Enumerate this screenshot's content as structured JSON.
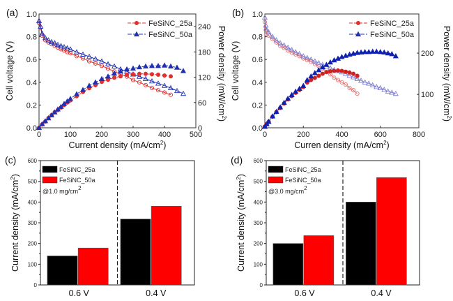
{
  "chart_data": [
    {
      "id": "a",
      "panel_label": "(a)",
      "type": "line",
      "xlabel": "Current density (mA/cm",
      "xlabel_sup": "2",
      "xlabel_end": ")",
      "ylabel": "Cell voltage (V)",
      "y2label": "Power density (mW/cm",
      "y2label_sup": "2",
      "y2label_end": ")",
      "xlim": [
        0,
        500
      ],
      "ylim": [
        0,
        1.0
      ],
      "y2lim": [
        0,
        270
      ],
      "xticks": [
        "0",
        "100",
        "200",
        "300",
        "400",
        "500"
      ],
      "yticks": [
        "0.0",
        "0.2",
        "0.4",
        "0.6",
        "0.8",
        "1.0"
      ],
      "y2ticks": [
        "0",
        "60",
        "120",
        "180",
        "240"
      ],
      "legend": [
        "FeSiNC_25a",
        "FeSiNC_50a"
      ],
      "legend_position": "top-right",
      "series": [
        {
          "name": "FeSiNC_25a",
          "kind": "voltage",
          "color": "#e03030",
          "x": [
            0,
            5,
            10,
            20,
            30,
            40,
            50,
            60,
            70,
            80,
            90,
            100,
            120,
            140,
            160,
            180,
            200,
            220,
            240,
            260,
            280,
            300,
            320,
            340,
            360,
            380,
            400,
            420
          ],
          "y": [
            0.92,
            0.88,
            0.81,
            0.77,
            0.75,
            0.735,
            0.72,
            0.705,
            0.69,
            0.68,
            0.665,
            0.655,
            0.63,
            0.61,
            0.585,
            0.565,
            0.545,
            0.52,
            0.495,
            0.47,
            0.45,
            0.42,
            0.4,
            0.375,
            0.35,
            0.33,
            0.31,
            0.29
          ]
        },
        {
          "name": "FeSiNC_50a",
          "kind": "voltage",
          "color": "#2030b0",
          "x": [
            0,
            5,
            10,
            20,
            30,
            40,
            50,
            60,
            70,
            80,
            90,
            100,
            120,
            140,
            160,
            180,
            200,
            220,
            240,
            260,
            280,
            300,
            320,
            340,
            360,
            380,
            400,
            420,
            440,
            460
          ],
          "y": [
            0.94,
            0.89,
            0.83,
            0.79,
            0.77,
            0.755,
            0.745,
            0.73,
            0.72,
            0.71,
            0.7,
            0.69,
            0.665,
            0.645,
            0.625,
            0.605,
            0.585,
            0.56,
            0.54,
            0.515,
            0.495,
            0.47,
            0.45,
            0.43,
            0.41,
            0.39,
            0.37,
            0.35,
            0.325,
            0.3
          ]
        },
        {
          "name": "FeSiNC_25a",
          "kind": "power",
          "color": "#e03030",
          "x": [
            0,
            10,
            20,
            30,
            40,
            50,
            60,
            70,
            80,
            90,
            100,
            120,
            140,
            160,
            180,
            200,
            220,
            240,
            260,
            280,
            300,
            320,
            340,
            360,
            380,
            400,
            420
          ],
          "y": [
            0,
            8,
            15,
            23,
            30,
            37,
            42,
            48,
            54,
            60,
            65,
            75,
            85,
            94,
            101,
            109,
            114,
            119,
            122,
            126,
            127,
            128,
            128,
            127,
            126,
            124,
            122
          ]
        },
        {
          "name": "FeSiNC_50a",
          "kind": "power",
          "color": "#2030b0",
          "x": [
            0,
            10,
            20,
            30,
            40,
            50,
            60,
            70,
            80,
            90,
            100,
            120,
            140,
            160,
            180,
            200,
            220,
            240,
            260,
            280,
            300,
            320,
            340,
            360,
            380,
            400,
            420,
            440,
            460
          ],
          "y": [
            0,
            9,
            16,
            23,
            30,
            37,
            44,
            50,
            57,
            63,
            69,
            80,
            90,
            100,
            108,
            116,
            122,
            129,
            134,
            139,
            141,
            144,
            146,
            147,
            147,
            148,
            146,
            143,
            135
          ]
        }
      ]
    },
    {
      "id": "b",
      "panel_label": "(b)",
      "type": "line",
      "xlabel": "Curren density (mA/cm",
      "xlabel_sup": "2",
      "xlabel_end": ")",
      "ylabel": "Cell voltage  (V)",
      "y2label": "Power density (mW/cm",
      "y2label_sup": "2",
      "y2label_end": ")",
      "xlim": [
        0,
        800
      ],
      "ylim": [
        0,
        1.0
      ],
      "y2lim": [
        19,
        295
      ],
      "xticks": [
        "0",
        "200",
        "400",
        "600",
        "800"
      ],
      "yticks": [
        "0.0",
        "0.2",
        "0.4",
        "0.6",
        "0.8",
        "1.0"
      ],
      "y2ticks": [
        "100",
        "200"
      ],
      "legend": [
        "FeSiNC_25a",
        "FeSiNC_50a"
      ],
      "legend_position": "top-right",
      "series": [
        {
          "name": "FeSiNC_25a",
          "kind": "voltage",
          "color": "#e87070",
          "x": [
            0,
            5,
            10,
            20,
            40,
            60,
            80,
            100,
            120,
            140,
            160,
            180,
            200,
            220,
            240,
            260,
            280,
            300,
            320,
            340,
            360,
            380,
            400,
            420,
            440,
            460,
            480
          ],
          "y": [
            0.93,
            0.86,
            0.82,
            0.81,
            0.78,
            0.75,
            0.72,
            0.7,
            0.68,
            0.66,
            0.645,
            0.63,
            0.61,
            0.595,
            0.58,
            0.56,
            0.54,
            0.52,
            0.49,
            0.47,
            0.44,
            0.42,
            0.4,
            0.38,
            0.35,
            0.33,
            0.3
          ]
        },
        {
          "name": "FeSiNC_50a",
          "kind": "voltage",
          "color": "#8080d0",
          "x": [
            0,
            5,
            10,
            20,
            40,
            60,
            80,
            100,
            120,
            140,
            160,
            180,
            200,
            220,
            240,
            260,
            280,
            300,
            320,
            340,
            360,
            380,
            400,
            420,
            440,
            460,
            480,
            500,
            520,
            540,
            560,
            580,
            600,
            620,
            640,
            660,
            680
          ],
          "y": [
            0.97,
            0.9,
            0.86,
            0.84,
            0.8,
            0.77,
            0.745,
            0.725,
            0.705,
            0.685,
            0.665,
            0.65,
            0.63,
            0.615,
            0.6,
            0.585,
            0.57,
            0.555,
            0.54,
            0.525,
            0.51,
            0.5,
            0.49,
            0.475,
            0.46,
            0.445,
            0.43,
            0.415,
            0.4,
            0.39,
            0.375,
            0.36,
            0.35,
            0.335,
            0.32,
            0.31,
            0.3
          ]
        },
        {
          "name": "FeSiNC_25a",
          "kind": "power",
          "color": "#d02020",
          "x": [
            0,
            10,
            20,
            40,
            60,
            80,
            100,
            120,
            140,
            160,
            180,
            200,
            220,
            240,
            260,
            280,
            300,
            320,
            340,
            360,
            380,
            400,
            420,
            440,
            460,
            480
          ],
          "y": [
            22,
            28,
            34,
            46,
            57,
            67,
            78,
            88,
            96,
            104,
            111,
            118,
            129,
            135,
            140,
            145,
            150,
            154,
            156,
            157,
            158,
            157,
            155,
            153,
            150,
            145
          ]
        },
        {
          "name": "FeSiNC_50a",
          "kind": "power",
          "color": "#1020b0",
          "x": [
            0,
            10,
            20,
            40,
            60,
            80,
            100,
            120,
            140,
            160,
            180,
            200,
            220,
            240,
            260,
            280,
            300,
            320,
            340,
            360,
            380,
            400,
            420,
            440,
            460,
            480,
            500,
            520,
            540,
            560,
            580,
            600,
            620,
            640,
            660,
            680
          ],
          "y": [
            22,
            28,
            34,
            47,
            58,
            69,
            80,
            90,
            99,
            107,
            114,
            121,
            135,
            144,
            152,
            159,
            166,
            172,
            178,
            183,
            187,
            191,
            194,
            197,
            199,
            201,
            202,
            203,
            203,
            204,
            204,
            203,
            202,
            200,
            198,
            193
          ]
        }
      ]
    },
    {
      "id": "c",
      "panel_label": "(c)",
      "type": "bar",
      "ylabel": "Current density (mA/cm",
      "ylabel_sup": "2",
      "ylabel_end": ")",
      "categories": [
        "0.6 V",
        "0.4 V"
      ],
      "ylim": [
        0,
        600
      ],
      "yticks": [
        "0",
        "100",
        "200",
        "300",
        "400",
        "500",
        "600"
      ],
      "annotation": "@1.0 mg/cm",
      "annotation_sup": "2",
      "legend_position": "top-left",
      "series": [
        {
          "name": "FeSiNC_25a",
          "color": "#000000",
          "values": [
            140,
            318
          ]
        },
        {
          "name": "FeSiNC_50a",
          "color": "#ff0000",
          "values": [
            178,
            380
          ]
        }
      ]
    },
    {
      "id": "d",
      "panel_label": "(d)",
      "type": "bar",
      "ylabel": "Current density (mA/cm",
      "ylabel_sup": "2",
      "ylabel_end": ")",
      "categories": [
        "0.6 V",
        "0.4 V"
      ],
      "ylim": [
        0,
        600
      ],
      "yticks": [
        "0",
        "100",
        "200",
        "300",
        "400",
        "500",
        "600"
      ],
      "annotation": "@3.0 mg/cm",
      "annotation_sup": "2",
      "legend_position": "top-left",
      "series": [
        {
          "name": "FeSiNC_25a",
          "color": "#000000",
          "values": [
            200,
            400
          ]
        },
        {
          "name": "FeSiNC_50a",
          "color": "#ff0000",
          "values": [
            238,
            518
          ]
        }
      ]
    }
  ]
}
